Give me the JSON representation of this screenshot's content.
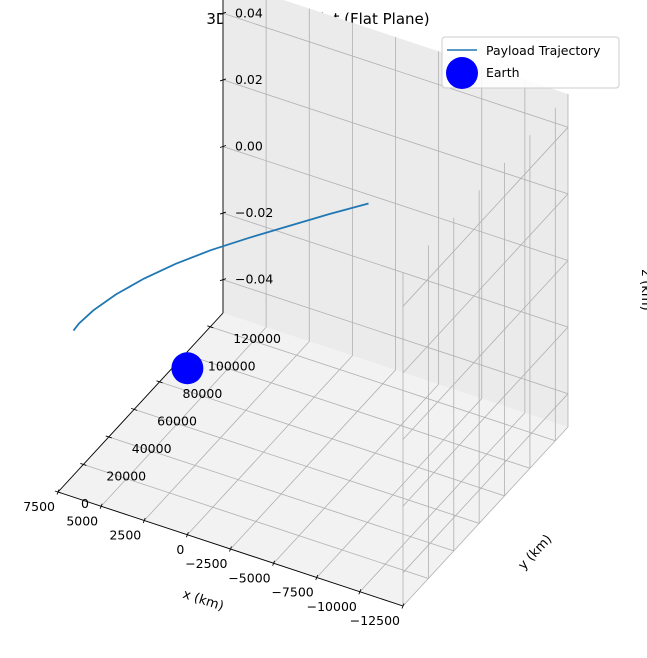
{
  "chart_data": {
    "type": "line",
    "title": "3D Trajectory Plot (Flat Plane)",
    "xlabel": "x (km)",
    "ylabel": "y (km)",
    "zlabel": "z (km)",
    "xlim": [
      -12500,
      7500
    ],
    "ylim": [
      0,
      130000
    ],
    "zlim": [
      -0.05,
      0.05
    ],
    "x_ticks": [
      "−12500",
      "−10000",
      "−7500",
      "−5000",
      "−2500",
      "0",
      "2500",
      "5000",
      "7500"
    ],
    "y_ticks": [
      "0",
      "20000",
      "40000",
      "60000",
      "80000",
      "100000",
      "120000"
    ],
    "z_ticks": [
      "−0.04",
      "−0.02",
      "0.00",
      "0.02",
      "0.04"
    ],
    "grid": true,
    "legend_position": "top-right",
    "series": [
      {
        "name": "Payload Trajectory",
        "color": "#1f77b4",
        "x": [
          6600,
          6650,
          6550,
          6200,
          5600,
          4800,
          3800,
          2600,
          1300,
          0,
          -1300
        ],
        "y": [
          0,
          5000,
          15000,
          28000,
          42000,
          56000,
          70000,
          84000,
          98000,
          112000,
          125000
        ],
        "z": [
          0,
          0,
          0,
          0,
          0,
          0,
          0,
          0,
          0,
          0,
          0
        ]
      },
      {
        "name": "Earth",
        "color": "#0000ff",
        "marker": "circle",
        "x": [
          0
        ],
        "y": [
          0
        ],
        "z": [
          0
        ]
      }
    ]
  }
}
